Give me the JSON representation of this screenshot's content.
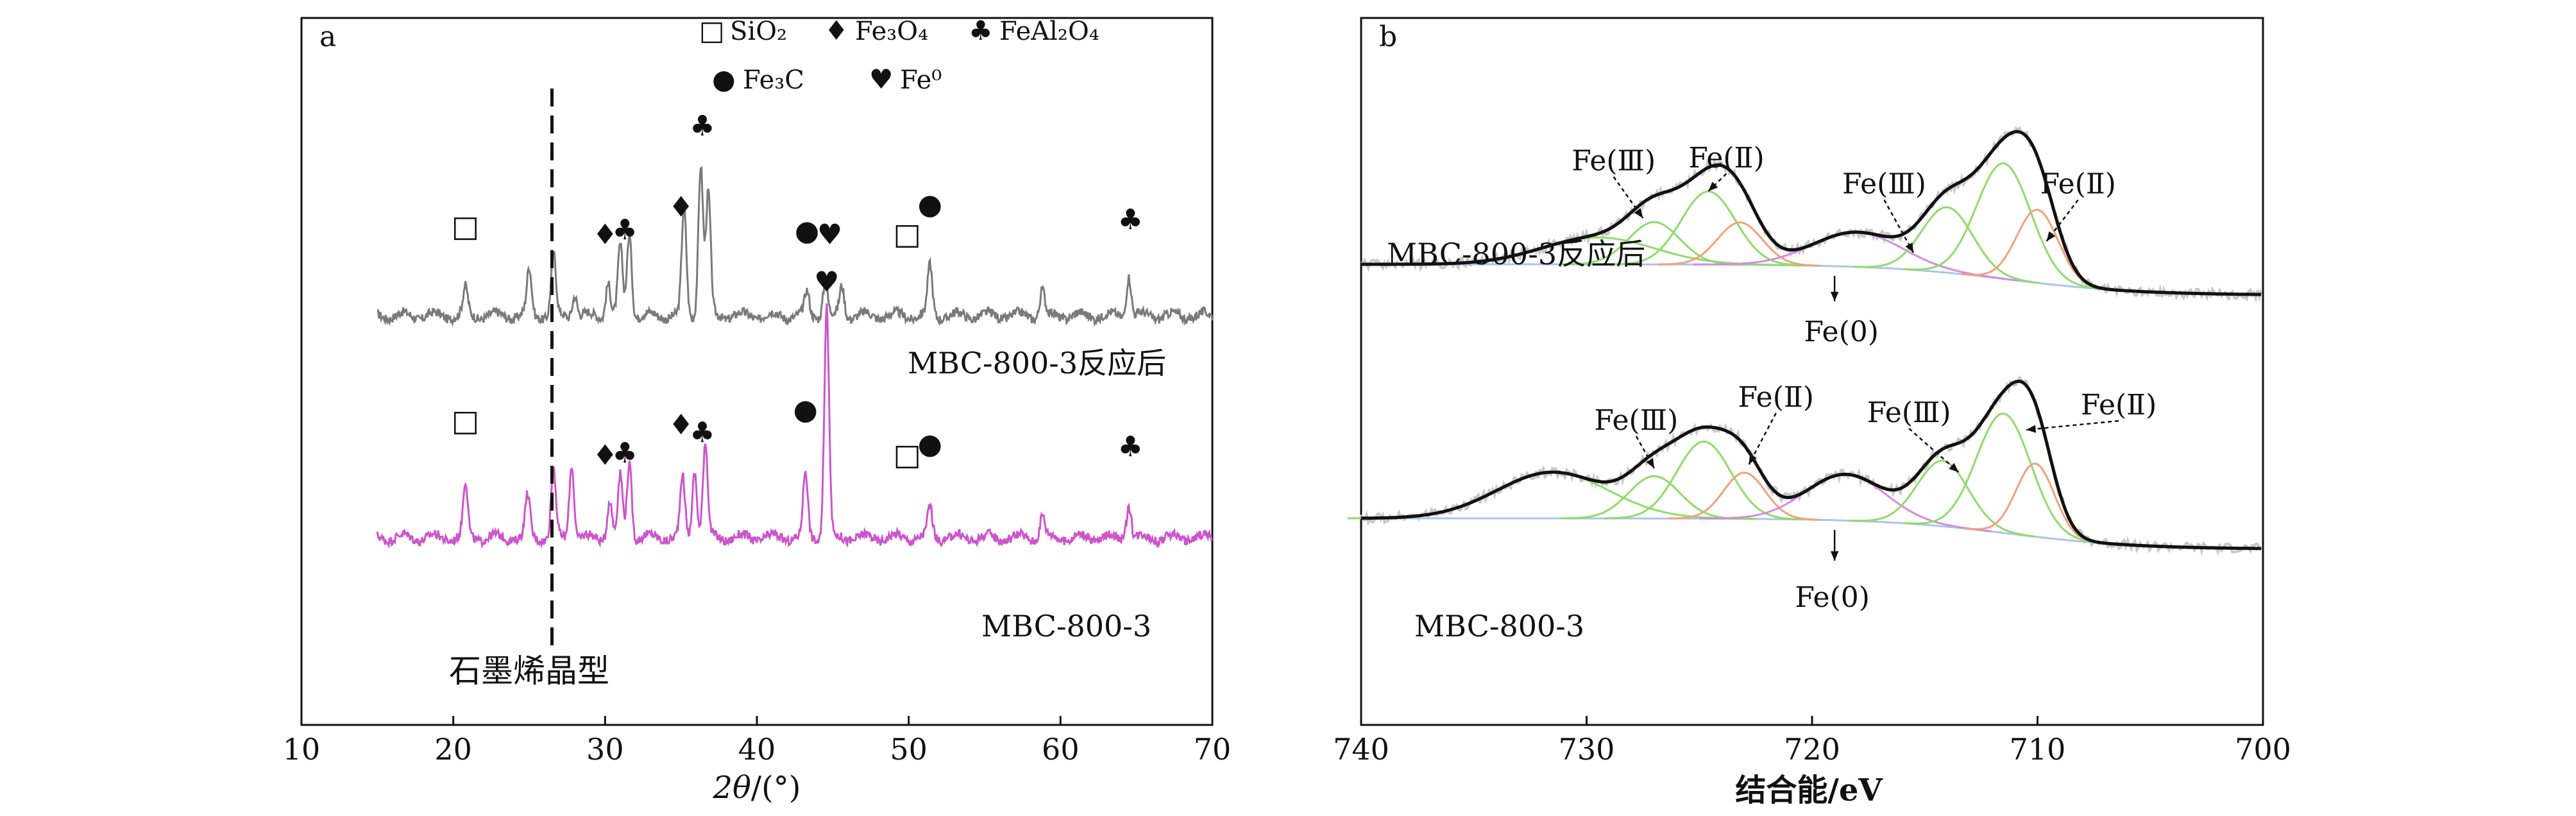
{
  "figure": {
    "colors": {
      "xrd_top": "#7a7a7a",
      "xrd_bottom": "#cc55cc",
      "pink_label": "#d666d6",
      "envelope": "#111111",
      "raw": "#c8c8c8",
      "fe3_peak": "#8fdc6a",
      "fe2_peak": "#f0a27a",
      "fe0_peak": "#d68be0",
      "satellite": "#8fdc6a",
      "background": "#a9c6e8",
      "marker": "#111111"
    }
  },
  "chart_data": [
    {
      "panel_label": "a",
      "type": "line",
      "title": "",
      "xlabel": "2θ/(°)",
      "xlabel_parts": {
        "symbol": "2θ",
        "unit": "/(°)"
      },
      "ylabel": "",
      "xlim": [
        10,
        70
      ],
      "xticks": [
        10,
        20,
        30,
        40,
        50,
        60,
        70
      ],
      "legend": [
        {
          "symbol": "□",
          "label": "SiO₂"
        },
        {
          "symbol": "♦",
          "label": "Fe₃O₄"
        },
        {
          "symbol": "♣",
          "label": "FeAl₂O₄"
        },
        {
          "symbol": "●",
          "label": "Fe₃C"
        },
        {
          "symbol": "♥",
          "label": "Fe⁰"
        }
      ],
      "series": [
        {
          "name": "MBC-800-3反应后",
          "color": "#7a7a7a",
          "baseline": 1.0,
          "noise": 0.06,
          "peaks": [
            {
              "x": 20.8,
              "h": 0.35
            },
            {
              "x": 25.0,
              "h": 0.6
            },
            {
              "x": 26.6,
              "h": 0.8
            },
            {
              "x": 28.0,
              "h": 0.3
            },
            {
              "x": 30.2,
              "h": 0.45
            },
            {
              "x": 31.0,
              "h": 0.9
            },
            {
              "x": 31.6,
              "h": 1.1
            },
            {
              "x": 35.2,
              "h": 1.4
            },
            {
              "x": 36.3,
              "h": 2.0
            },
            {
              "x": 36.8,
              "h": 1.6
            },
            {
              "x": 43.3,
              "h": 0.3
            },
            {
              "x": 44.5,
              "h": 0.45
            },
            {
              "x": 45.6,
              "h": 0.4
            },
            {
              "x": 51.4,
              "h": 0.65
            },
            {
              "x": 58.8,
              "h": 0.35
            },
            {
              "x": 64.5,
              "h": 0.55
            }
          ],
          "label_text": "MBC-800-3反应后"
        },
        {
          "name": "MBC-800-3",
          "color": "#cc55cc",
          "baseline": 0.0,
          "noise": 0.06,
          "peaks": [
            {
              "x": 20.8,
              "h": 0.7
            },
            {
              "x": 24.9,
              "h": 0.55
            },
            {
              "x": 26.6,
              "h": 0.9
            },
            {
              "x": 27.8,
              "h": 1.0
            },
            {
              "x": 30.3,
              "h": 0.5
            },
            {
              "x": 31.0,
              "h": 0.8
            },
            {
              "x": 31.6,
              "h": 1.0
            },
            {
              "x": 35.1,
              "h": 0.8
            },
            {
              "x": 35.9,
              "h": 0.9
            },
            {
              "x": 36.6,
              "h": 1.25
            },
            {
              "x": 43.2,
              "h": 0.85
            },
            {
              "x": 44.6,
              "h": 3.05
            },
            {
              "x": 51.4,
              "h": 0.4
            },
            {
              "x": 58.8,
              "h": 0.3
            },
            {
              "x": 64.5,
              "h": 0.45
            }
          ],
          "label_text": "MBC-800-3"
        }
      ],
      "markers": [
        {
          "series": 0,
          "symbol": "□",
          "x": 20.8
        },
        {
          "series": 0,
          "symbol": "♦",
          "x": 30.0
        },
        {
          "series": 0,
          "symbol": "♣",
          "x": 31.3
        },
        {
          "series": 0,
          "symbol": "♦",
          "x": 35.0
        },
        {
          "series": 0,
          "symbol": "♣",
          "x": 36.4
        },
        {
          "series": 0,
          "symbol": "●",
          "x": 43.3
        },
        {
          "series": 0,
          "symbol": "♥",
          "x": 44.8
        },
        {
          "series": 0,
          "symbol": "□",
          "x": 49.9
        },
        {
          "series": 0,
          "symbol": "●",
          "x": 51.4
        },
        {
          "series": 0,
          "symbol": "♣",
          "x": 64.6
        },
        {
          "series": 1,
          "symbol": "□",
          "x": 20.8
        },
        {
          "series": 1,
          "symbol": "♦",
          "x": 30.0
        },
        {
          "series": 1,
          "symbol": "♣",
          "x": 31.3
        },
        {
          "series": 1,
          "symbol": "♦",
          "x": 35.0
        },
        {
          "series": 1,
          "symbol": "♣",
          "x": 36.4
        },
        {
          "series": 1,
          "symbol": "●",
          "x": 43.2
        },
        {
          "series": 1,
          "symbol": "♥",
          "x": 44.6
        },
        {
          "series": 1,
          "symbol": "□",
          "x": 49.9
        },
        {
          "series": 1,
          "symbol": "●",
          "x": 51.4
        },
        {
          "series": 1,
          "symbol": "♣",
          "x": 64.6
        }
      ],
      "reference_line": {
        "x": 26.5,
        "label": "石墨烯晶型",
        "style": "dashed"
      }
    },
    {
      "panel_label": "b",
      "type": "line",
      "title": "",
      "xlabel": "结合能/eV",
      "ylabel": "",
      "xlim": [
        740,
        700
      ],
      "xticks": [
        740,
        730,
        720,
        710,
        700
      ],
      "series": [
        {
          "name": "MBC-800-3反应后",
          "label_text": "MBC-800-3反应后",
          "label_color": "#111111",
          "offset": 1.0,
          "background": {
            "start": 740,
            "end": 700,
            "high": 0.8,
            "low": 0.0
          },
          "components": [
            {
              "type": "satellite",
              "center": 729.5,
              "height": 0.35,
              "width": 3.5
            },
            {
              "type": "Fe(III)",
              "center": 727.0,
              "height": 0.55,
              "width": 1.6
            },
            {
              "type": "Fe(III)",
              "center": 724.6,
              "height": 0.95,
              "width": 1.7
            },
            {
              "type": "Fe(II)",
              "center": 723.2,
              "height": 0.55,
              "width": 1.4
            },
            {
              "type": "Fe(0)",
              "center": 718.0,
              "height": 0.45,
              "width": 2.8
            },
            {
              "type": "Fe(III)",
              "center": 714.0,
              "height": 0.85,
              "width": 1.6
            },
            {
              "type": "Fe(III)",
              "center": 711.5,
              "height": 1.5,
              "width": 1.7
            },
            {
              "type": "Fe(II)",
              "center": 710.0,
              "height": 0.95,
              "width": 1.3
            }
          ],
          "annotations": [
            {
              "text": "Fe(Ⅲ)",
              "x": 728.8,
              "y": 2.62,
              "arrow_to": [
                727.5,
                2.0
              ]
            },
            {
              "text": "Fe(Ⅱ)",
              "x": 723.8,
              "y": 2.66,
              "arrow_to": [
                724.6,
                2.35
              ]
            },
            {
              "text": "Fe(Ⅲ)",
              "x": 716.8,
              "y": 2.32,
              "arrow_to": [
                715.5,
                1.55
              ]
            },
            {
              "text": "Fe(Ⅱ)",
              "x": 708.2,
              "y": 2.32,
              "arrow_to": [
                709.6,
                1.7
              ]
            },
            {
              "text": "Fe(0)",
              "x": 718.7,
              "y": 0.4,
              "arrow_from": [
                719.0,
                1.25
              ],
              "arrow_to": [
                719.0,
                0.92
              ]
            }
          ]
        },
        {
          "name": "MBC-800-3",
          "label_text": "MBC-800-3",
          "label_color": "#d666d6",
          "offset": -2.3,
          "background": {
            "start": 740,
            "end": 700,
            "high": 0.8,
            "low": 0.0
          },
          "components": [
            {
              "type": "satellite",
              "center": 731.5,
              "height": 0.6,
              "width": 3.5
            },
            {
              "type": "Fe(III)",
              "center": 727.0,
              "height": 0.55,
              "width": 1.6
            },
            {
              "type": "Fe(III)",
              "center": 724.8,
              "height": 1.0,
              "width": 1.7
            },
            {
              "type": "Fe(II)",
              "center": 723.0,
              "height": 0.6,
              "width": 1.3
            },
            {
              "type": "Fe(0)",
              "center": 718.5,
              "height": 0.6,
              "width": 2.5
            },
            {
              "type": "Fe(III)",
              "center": 714.2,
              "height": 0.85,
              "width": 1.6
            },
            {
              "type": "Fe(III)",
              "center": 711.5,
              "height": 1.55,
              "width": 1.7
            },
            {
              "type": "Fe(II)",
              "center": 710.1,
              "height": 0.95,
              "width": 1.2
            }
          ],
          "annotations": [
            {
              "text": "Fe(Ⅲ)",
              "x": 727.8,
              "y": -0.75,
              "arrow_to": [
                727.0,
                -1.25
              ]
            },
            {
              "text": "Fe(Ⅱ)",
              "x": 721.6,
              "y": -0.45,
              "arrow_to": [
                722.8,
                -1.2
              ]
            },
            {
              "text": "Fe(Ⅲ)",
              "x": 715.7,
              "y": -0.65,
              "arrow_to": [
                713.5,
                -1.3
              ]
            },
            {
              "text": "Fe(Ⅱ)",
              "x": 706.4,
              "y": -0.55,
              "arrow_to": [
                710.5,
                -0.75
              ]
            },
            {
              "text": "Fe(0)",
              "x": 719.1,
              "y": -3.05,
              "arrow_from": [
                719.0,
                -2.05
              ],
              "arrow_to": [
                719.0,
                -2.45
              ]
            }
          ]
        }
      ]
    }
  ]
}
